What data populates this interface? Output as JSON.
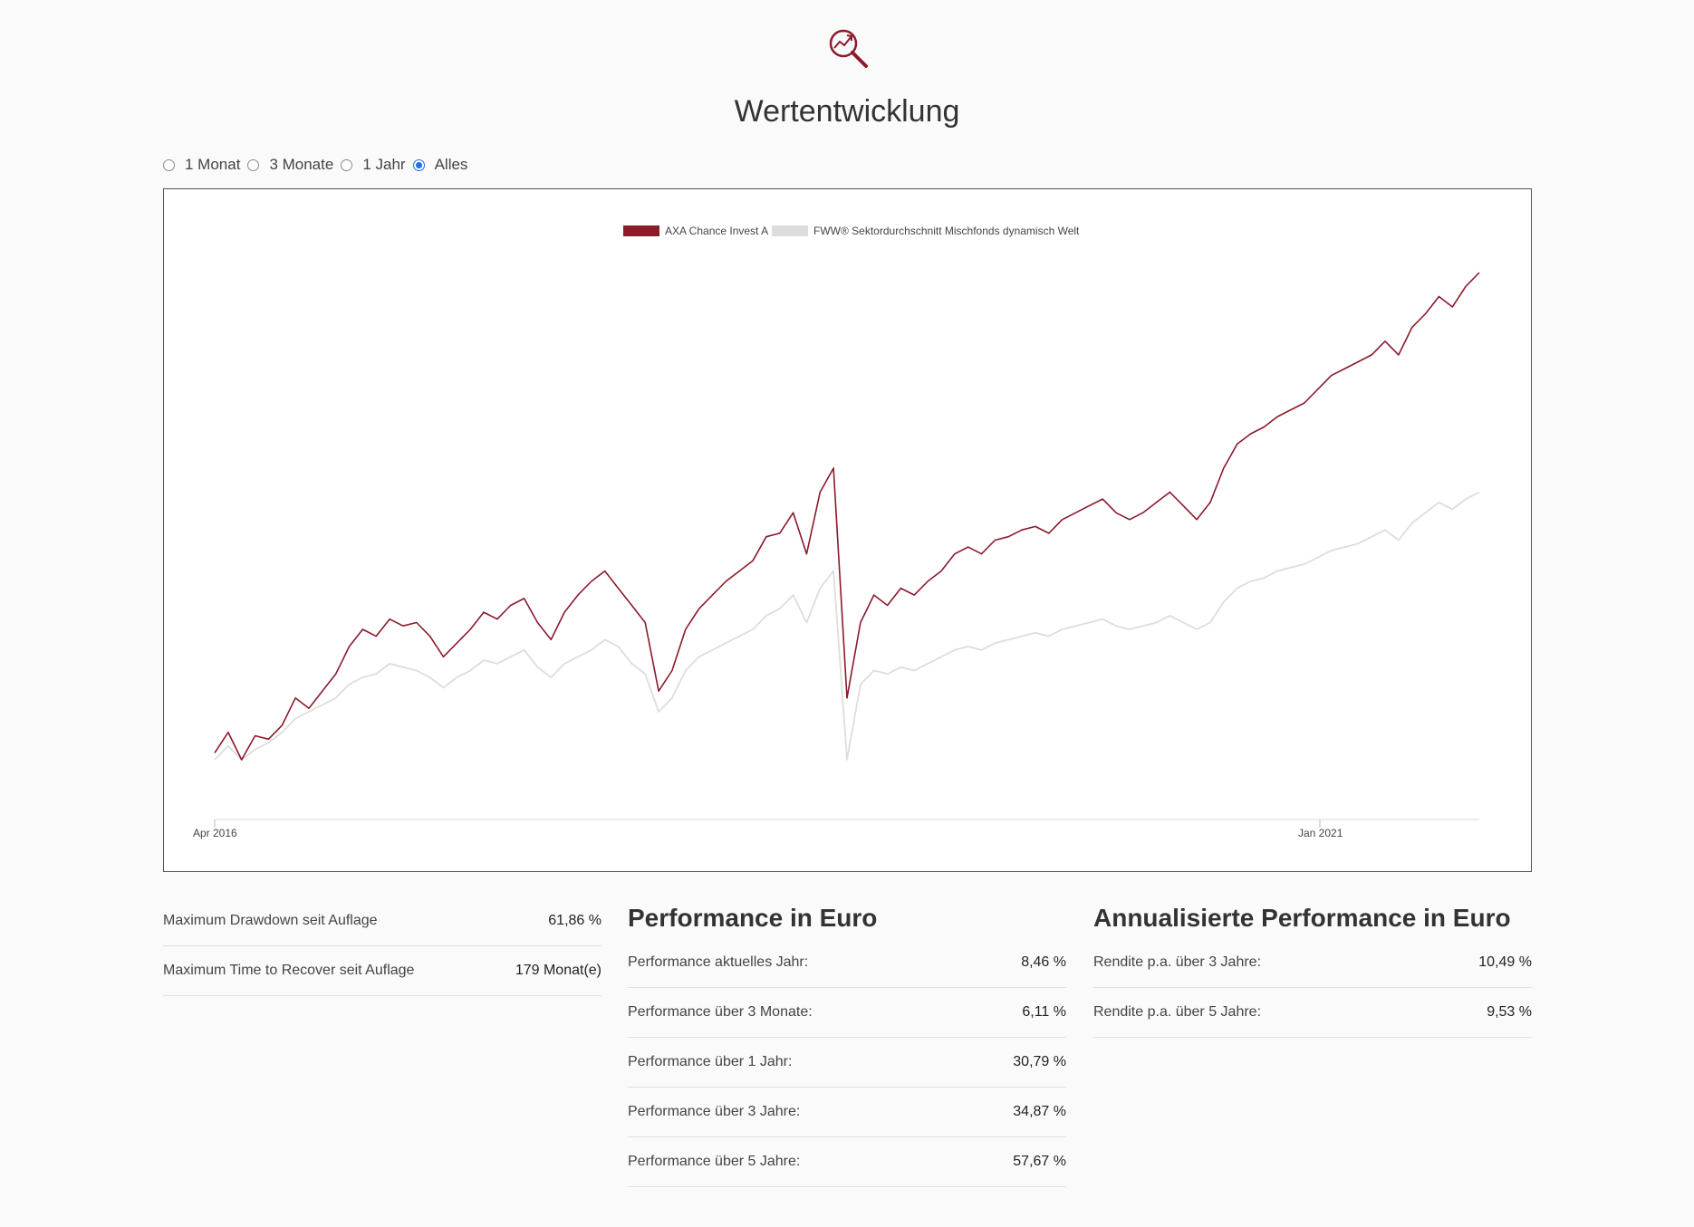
{
  "page": {
    "title": "Wertentwicklung",
    "logo_icon": "magnifier-chart-icon",
    "accent_color": "#8b1a2b"
  },
  "range_selector": {
    "options": [
      {
        "label": "1 Monat",
        "checked": false
      },
      {
        "label": "3 Monate",
        "checked": false
      },
      {
        "label": "1 Jahr",
        "checked": false
      },
      {
        "label": "Alles",
        "checked": true
      }
    ]
  },
  "chart_data": {
    "type": "line",
    "title": "",
    "xlabel": "",
    "ylabel": "",
    "x_ticks": [
      "Apr 2016",
      "Jan 2021"
    ],
    "x_range": [
      "2016-04",
      "2021-08"
    ],
    "y_axis_visible": false,
    "grid": false,
    "legend_placement": "top-center",
    "series": [
      {
        "name": "AXA Chance Invest A",
        "color": "#8b1a2b",
        "values": [
          2,
          8,
          0,
          7,
          6,
          10,
          18,
          15,
          20,
          25,
          33,
          38,
          36,
          41,
          39,
          40,
          36,
          30,
          34,
          38,
          43,
          41,
          45,
          47,
          40,
          35,
          43,
          48,
          52,
          55,
          50,
          45,
          40,
          20,
          26,
          38,
          44,
          48,
          52,
          55,
          58,
          65,
          66,
          72,
          60,
          78,
          85,
          18,
          40,
          48,
          45,
          50,
          48,
          52,
          55,
          60,
          62,
          60,
          64,
          65,
          67,
          68,
          66,
          70,
          72,
          74,
          76,
          72,
          70,
          72,
          75,
          78,
          74,
          70,
          75,
          85,
          92,
          95,
          97,
          100,
          102,
          104,
          108,
          112,
          114,
          116,
          118,
          122,
          118,
          126,
          130,
          135,
          132,
          138,
          142
        ]
      },
      {
        "name": "FWW® Sektordurchschnitt Mischfonds dynamisch Welt",
        "color": "#dddddd",
        "values": [
          0,
          4,
          0,
          3,
          5,
          8,
          12,
          14,
          16,
          18,
          22,
          24,
          25,
          28,
          27,
          26,
          24,
          21,
          24,
          26,
          29,
          28,
          30,
          32,
          27,
          24,
          28,
          30,
          32,
          35,
          33,
          28,
          25,
          14,
          18,
          26,
          30,
          32,
          34,
          36,
          38,
          42,
          44,
          48,
          40,
          50,
          55,
          0,
          22,
          26,
          25,
          27,
          26,
          28,
          30,
          32,
          33,
          32,
          34,
          35,
          36,
          37,
          36,
          38,
          39,
          40,
          41,
          39,
          38,
          39,
          40,
          42,
          40,
          38,
          40,
          46,
          50,
          52,
          53,
          55,
          56,
          57,
          59,
          61,
          62,
          63,
          65,
          67,
          64,
          69,
          72,
          75,
          73,
          76,
          78
        ]
      }
    ]
  },
  "drawdown": {
    "rows": [
      {
        "label": "Maximum Drawdown seit Auflage",
        "value": "61,86 %"
      },
      {
        "label": "Maximum Time to Recover seit Auflage",
        "value": "179 Monat(e)"
      }
    ]
  },
  "performance": {
    "heading": "Performance in Euro",
    "rows": [
      {
        "label": "Performance aktuelles Jahr:",
        "value": "8,46 %"
      },
      {
        "label": "Performance über 3 Monate:",
        "value": "6,11 %"
      },
      {
        "label": "Performance über 1 Jahr:",
        "value": "30,79 %"
      },
      {
        "label": "Performance über 3 Jahre:",
        "value": "34,87 %"
      },
      {
        "label": "Performance über 5 Jahre:",
        "value": "57,67 %"
      }
    ]
  },
  "annualized": {
    "heading": "Annualisierte Performance in Euro",
    "rows": [
      {
        "label": "Rendite p.a. über 3 Jahre:",
        "value": "10,49 %"
      },
      {
        "label": "Rendite p.a. über 5 Jahre:",
        "value": "9,53 %"
      }
    ]
  }
}
